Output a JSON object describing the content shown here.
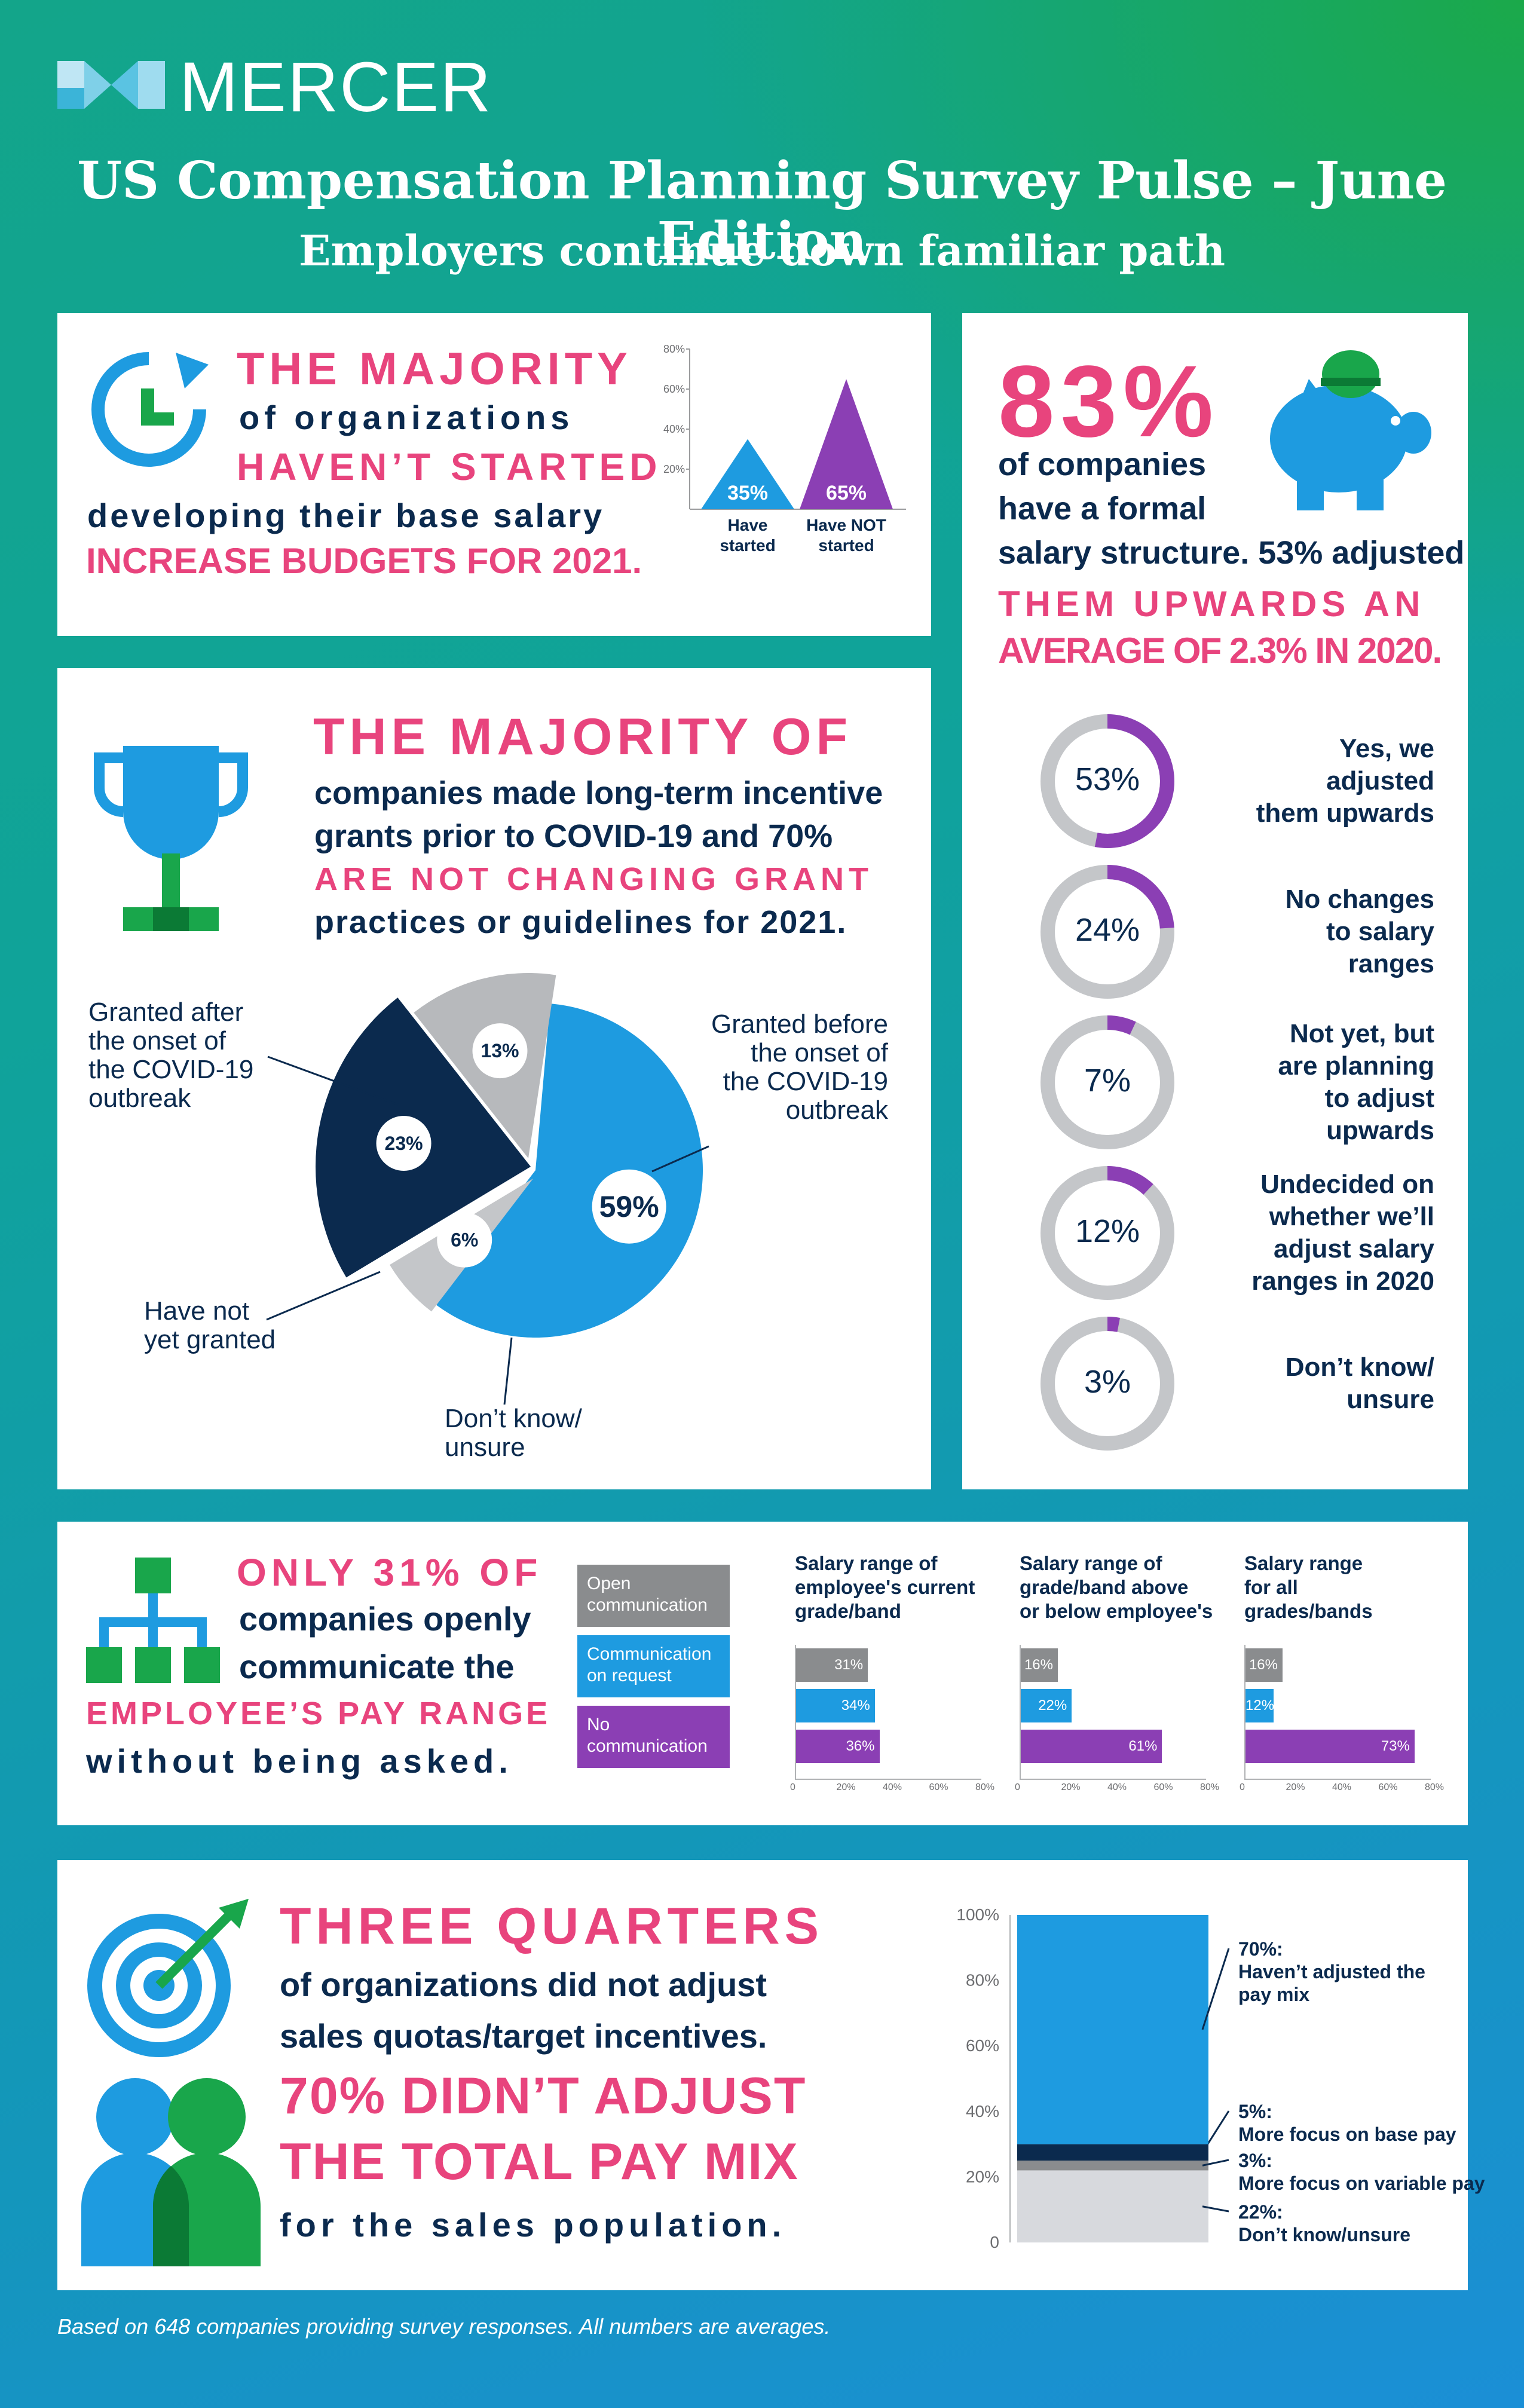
{
  "brand": {
    "name": "MERCER"
  },
  "header": {
    "title": "US Compensation Planning Survey Pulse – June Edition",
    "subtitle": "Employers continue down familiar path"
  },
  "colors": {
    "pink": "#e8447d",
    "navy": "#0b2a4e",
    "blue": "#1e9be0",
    "purple": "#8b3fb4",
    "gray": "#8a8c8e",
    "green": "#19a64b"
  },
  "section1": {
    "icon": "clock-refresh-icon",
    "line1": "THE MAJORITY",
    "line2": "of organizations",
    "line3": "HAVEN’T STARTED",
    "line4": "developing their base salary",
    "line5": "INCREASE BUDGETS FOR 2021.",
    "chart_data": {
      "type": "area",
      "categories": [
        "Have started",
        "Have NOT started"
      ],
      "values": [
        35,
        65
      ],
      "value_labels": [
        "35%",
        "65%"
      ],
      "yticks": [
        "20%",
        "40%",
        "60%",
        "80%"
      ],
      "ylim": [
        0,
        80
      ]
    }
  },
  "section2": {
    "big": "83%",
    "line1": "of companies",
    "line2": "have a formal",
    "line3": "salary structure. 53% adjusted",
    "line4": "THEM UPWARDS AN",
    "line5": "AVERAGE OF 2.3% IN 2020.",
    "icon": "piggy-bank-icon",
    "rings": [
      {
        "value": 53,
        "label": "53%",
        "text": [
          "Yes, we",
          "adjusted",
          "them upwards"
        ]
      },
      {
        "value": 24,
        "label": "24%",
        "text": [
          "No changes",
          "to salary",
          "ranges"
        ]
      },
      {
        "value": 7,
        "label": "7%",
        "text": [
          "Not yet, but",
          "are planning",
          "to adjust",
          "upwards"
        ]
      },
      {
        "value": 12,
        "label": "12%",
        "text": [
          "Undecided on",
          "whether we’ll",
          "adjust salary",
          "ranges in 2020"
        ]
      },
      {
        "value": 3,
        "label": "3%",
        "text": [
          "Don’t know/",
          "unsure"
        ]
      }
    ]
  },
  "section3": {
    "icon": "trophy-icon",
    "line1": "THE MAJORITY OF",
    "line2": "companies made long-term incentive",
    "line3": "grants prior to COVID-19 and 70%",
    "line4": "ARE NOT CHANGING GRANT",
    "line5": "practices or guidelines for 2021.",
    "chart_data": {
      "type": "pie",
      "slices": [
        {
          "name": "Granted before the onset of the COVID-19 outbreak",
          "value": 59,
          "label": "59%"
        },
        {
          "name": "Don’t know/ unsure",
          "value": 6,
          "label": "6%"
        },
        {
          "name": "Have not yet granted",
          "value": 23,
          "label": "23%"
        },
        {
          "name": "Granted after the onset of the COVID-19 outbreak",
          "value": 13,
          "label": "13%"
        }
      ],
      "callouts": {
        "before": [
          "Granted before",
          "the onset of",
          "the COVID-19",
          "outbreak"
        ],
        "after": [
          "Granted after",
          "the onset of",
          "the COVID-19",
          "outbreak"
        ],
        "notyet": [
          "Have not",
          "yet granted"
        ],
        "dk": [
          "Don’t know/",
          "unsure"
        ]
      }
    }
  },
  "section4": {
    "icon": "org-chart-icon",
    "line1": "ONLY 31% OF",
    "line2": "companies openly",
    "line3": "communicate the",
    "line4": "EMPLOYEE’S PAY RANGE",
    "line5": "without being asked.",
    "legend": [
      "Open communication",
      "Communication on request",
      "No communication"
    ],
    "chart_data": [
      {
        "type": "bar",
        "title": "Salary range of employee's current grade/band",
        "series": [
          "Open communication",
          "Communication on request",
          "No communication"
        ],
        "values": [
          31,
          34,
          36
        ],
        "xticks": [
          "0",
          "20%",
          "40%",
          "60%",
          "80%"
        ],
        "xlim": [
          0,
          80
        ]
      },
      {
        "type": "bar",
        "title": "Salary range of grade/band above or below employee's",
        "series": [
          "Open communication",
          "Communication on request",
          "No communication"
        ],
        "values": [
          16,
          22,
          61
        ],
        "xticks": [
          "0",
          "20%",
          "40%",
          "60%",
          "80%"
        ],
        "xlim": [
          0,
          80
        ]
      },
      {
        "type": "bar",
        "title": "Salary range for all grades/bands",
        "series": [
          "Open communication",
          "Communication on request",
          "No communication"
        ],
        "values": [
          16,
          12,
          73
        ],
        "xticks": [
          "0",
          "20%",
          "40%",
          "60%",
          "80%"
        ],
        "xlim": [
          0,
          80
        ]
      }
    ],
    "titles": [
      [
        "Salary range of",
        "employee's current",
        "grade/band"
      ],
      [
        "Salary range of",
        "grade/band above",
        "or below employee's"
      ],
      [
        "Salary range",
        "for all",
        "grades/bands"
      ]
    ]
  },
  "section5": {
    "icon1": "target-icon",
    "icon2": "people-icon",
    "line1": "THREE QUARTERS",
    "line2": "of organizations did not adjust",
    "line3": "sales quotas/target incentives.",
    "line4": "70% DIDN’T ADJUST",
    "line5": "THE TOTAL PAY MIX",
    "line6": "for the sales population.",
    "chart_data": {
      "type": "bar",
      "stacked": true,
      "yticks": [
        "0",
        "20%",
        "40%",
        "60%",
        "80%",
        "100%"
      ],
      "ylim": [
        0,
        100
      ],
      "segments": [
        {
          "name": "Don’t know/unsure",
          "value": 22,
          "label": "22%:"
        },
        {
          "name": "More focus on variable pay",
          "value": 3,
          "label": "3%:"
        },
        {
          "name": "More focus on base pay",
          "value": 5,
          "label": "5%:"
        },
        {
          "name": "Haven’t adjusted the pay mix",
          "value": 70,
          "label": "70%:",
          "name_lines": [
            "Haven’t adjusted the",
            "pay mix"
          ]
        }
      ]
    }
  },
  "footer": "Based on 648 companies providing survey responses. All numbers are averages."
}
